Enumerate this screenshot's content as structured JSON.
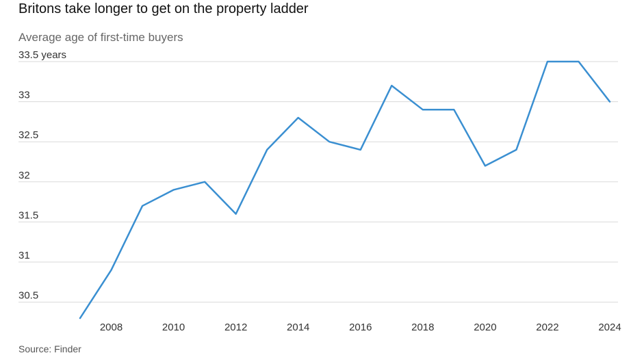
{
  "title": "Britons take longer to get on the property ladder",
  "subtitle": "Average age of first-time buyers",
  "source": "Source: Finder",
  "chart_data": {
    "type": "line",
    "title": "Britons take longer to get on the property ladder",
    "subtitle": "Average age of first-time buyers",
    "xlabel": "",
    "ylabel": "",
    "x": [
      2007,
      2008,
      2009,
      2010,
      2011,
      2012,
      2013,
      2014,
      2015,
      2016,
      2017,
      2018,
      2019,
      2020,
      2021,
      2022,
      2023,
      2024
    ],
    "series": [
      {
        "values": [
          30.3,
          30.9,
          31.7,
          31.9,
          32.0,
          31.6,
          32.4,
          32.8,
          32.5,
          32.4,
          33.2,
          32.9,
          32.9,
          32.2,
          32.4,
          33.5,
          33.5,
          33.0
        ],
        "color": "#3a8fd1"
      }
    ],
    "xlim": [
      2007,
      2024
    ],
    "ylim": [
      30.3,
      33.5
    ],
    "x_ticks": [
      2008,
      2010,
      2012,
      2014,
      2016,
      2018,
      2020,
      2022,
      2024
    ],
    "x_tick_labels": [
      "2008",
      "2010",
      "2012",
      "2014",
      "2016",
      "2018",
      "2020",
      "2022",
      "2024"
    ],
    "y_ticks": [
      30.5,
      31,
      31.5,
      32,
      32.5,
      33,
      33.5
    ],
    "y_tick_labels": [
      "30.5",
      "31",
      "31.5",
      "32",
      "32.5",
      "33",
      "33.5 years"
    ],
    "grid": "horizontal",
    "legend": "none",
    "colors": {
      "line": "#3a8fd1",
      "grid": "#d9d9d9"
    }
  }
}
